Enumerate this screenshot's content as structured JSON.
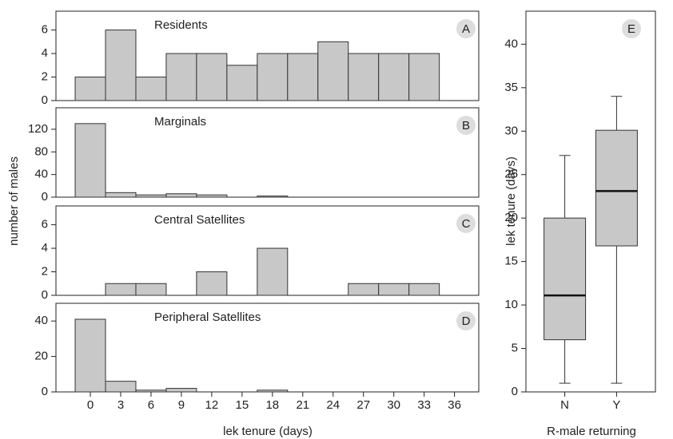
{
  "chart_data": [
    {
      "type": "histogram",
      "title": "Residents",
      "label": "A",
      "ylabel": "number of males",
      "color": "#c8c8c8",
      "bins": [
        -1.5,
        1.5,
        4.5,
        7.5,
        10.5,
        13.5,
        16.5,
        19.5,
        22.5,
        25.5,
        28.5,
        31.5,
        34.5
      ],
      "counts": [
        2,
        6,
        2,
        4,
        4,
        3,
        4,
        4,
        5,
        4,
        4,
        4
      ],
      "xlim": [
        -3.4,
        38.4
      ],
      "ylim": [
        0,
        7.6
      ],
      "yticks": [
        0,
        2,
        4,
        6
      ]
    },
    {
      "type": "histogram",
      "title": "Marginals",
      "label": "B",
      "color": "#c8c8c8",
      "bins": [
        -1.5,
        1.5,
        4.5,
        7.5,
        10.5,
        13.5,
        16.5,
        19.5,
        22.5,
        25.5,
        28.5,
        31.5,
        34.5
      ],
      "counts": [
        130,
        8,
        4,
        6,
        4,
        0,
        2,
        0,
        0,
        0,
        0,
        0
      ],
      "xlim": [
        -3.4,
        38.4
      ],
      "ylim": [
        0,
        158
      ],
      "yticks": [
        0,
        40,
        80,
        120
      ]
    },
    {
      "type": "histogram",
      "title": "Central Satellites",
      "label": "C",
      "color": "#c8c8c8",
      "bins": [
        -1.5,
        1.5,
        4.5,
        7.5,
        10.5,
        13.5,
        16.5,
        19.5,
        22.5,
        25.5,
        28.5,
        31.5,
        34.5
      ],
      "counts": [
        0,
        1,
        1,
        0,
        2,
        0,
        4,
        0,
        0,
        1,
        1,
        1
      ],
      "xlim": [
        -3.4,
        38.4
      ],
      "ylim": [
        0,
        7.6
      ],
      "yticks": [
        0,
        2,
        4,
        6
      ]
    },
    {
      "type": "histogram",
      "title": "Peripheral Satellites",
      "label": "D",
      "color": "#c8c8c8",
      "xlabel": "lek tenure (days)",
      "bins": [
        -1.5,
        1.5,
        4.5,
        7.5,
        10.5,
        13.5,
        16.5,
        19.5,
        22.5,
        25.5,
        28.5,
        31.5,
        34.5
      ],
      "counts": [
        41,
        6,
        1,
        2,
        0,
        0,
        1,
        0,
        0,
        0,
        0,
        0
      ],
      "xlim": [
        -3.4,
        38.4
      ],
      "ylim": [
        0,
        50
      ],
      "yticks": [
        0,
        20,
        40
      ],
      "xticks": [
        0,
        3,
        6,
        9,
        12,
        15,
        18,
        21,
        24,
        27,
        30,
        33,
        36
      ]
    },
    {
      "type": "box",
      "label": "E",
      "color": "#c8c8c8",
      "xlabel": "R-male returning",
      "ylabel": "lek tenure (days)",
      "categories": [
        "N",
        "Y"
      ],
      "whisker_low": [
        1,
        1
      ],
      "q1": [
        6,
        16.8
      ],
      "median": [
        11.1,
        23.1
      ],
      "q3": [
        20,
        30.1
      ],
      "whisker_high": [
        27.2,
        34
      ],
      "ylim": [
        0,
        43.8
      ],
      "yticks": [
        0,
        5,
        10,
        15,
        20,
        25,
        30,
        35,
        40
      ]
    }
  ]
}
